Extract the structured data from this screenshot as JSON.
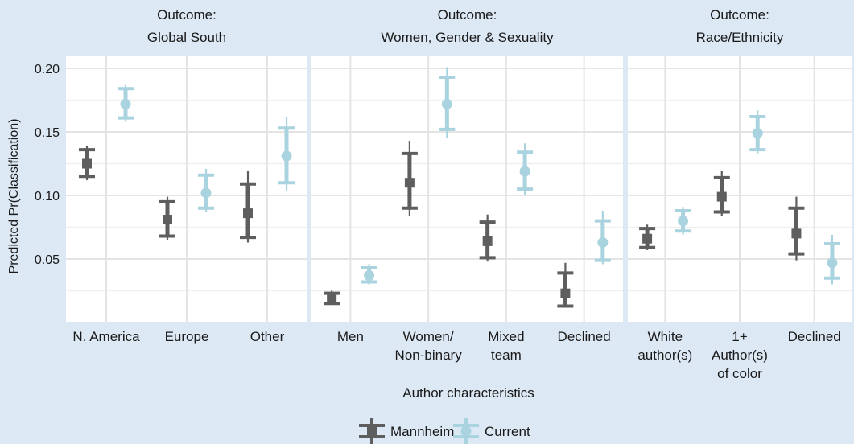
{
  "chart_data": {
    "type": "errorbar",
    "ylabel": "Predicted Pr(Classification)",
    "xlabel": "Author characteristics",
    "ylim": [
      0,
      0.2
    ],
    "yticks": [
      "0.05",
      "0.10",
      "0.15",
      "0.20"
    ],
    "ytick_values": [
      0.05,
      0.1,
      0.15,
      0.2
    ],
    "colors": {
      "Mannheim": "#5e5e5e",
      "Current": "#a9d3df"
    },
    "background": "#dce8f4",
    "legend": {
      "placement": "bottom",
      "entries": [
        "Mannheim",
        "Current"
      ]
    },
    "panels": [
      {
        "title": "Outcome:\nGlobal South",
        "categories": [
          "N. America",
          "Europe",
          "Other"
        ],
        "series": [
          {
            "name": "Mannheim",
            "values": [
              0.125,
              0.081,
              0.086
            ],
            "inner": [
              [
                0.115,
                0.136
              ],
              [
                0.068,
                0.095
              ],
              [
                0.067,
                0.109
              ]
            ],
            "outer": [
              [
                0.112,
                0.139
              ],
              [
                0.065,
                0.099
              ],
              [
                0.063,
                0.119
              ]
            ]
          },
          {
            "name": "Current",
            "values": [
              0.172,
              0.102,
              0.131
            ],
            "inner": [
              [
                0.161,
                0.184
              ],
              [
                0.09,
                0.116
              ],
              [
                0.11,
                0.153
              ]
            ],
            "outer": [
              [
                0.158,
                0.187
              ],
              [
                0.087,
                0.121
              ],
              [
                0.104,
                0.162
              ]
            ]
          }
        ]
      },
      {
        "title": "Outcome:\nWomen, Gender & Sexuality",
        "categories": [
          "Men",
          "Women/\nNon-binary",
          "Mixed\nteam",
          "Declined"
        ],
        "series": [
          {
            "name": "Mannheim",
            "values": [
              0.019,
              0.11,
              0.064,
              0.023
            ],
            "inner": [
              [
                0.015,
                0.023
              ],
              [
                0.09,
                0.133
              ],
              [
                0.051,
                0.079
              ],
              [
                0.013,
                0.039
              ]
            ],
            "outer": [
              [
                0.014,
                0.025
              ],
              [
                0.084,
                0.143
              ],
              [
                0.048,
                0.085
              ],
              [
                0.012,
                0.047
              ]
            ]
          },
          {
            "name": "Current",
            "values": [
              0.037,
              0.172,
              0.119,
              0.063
            ],
            "inner": [
              [
                0.032,
                0.043
              ],
              [
                0.152,
                0.193
              ],
              [
                0.105,
                0.134
              ],
              [
                0.049,
                0.08
              ]
            ],
            "outer": [
              [
                0.03,
                0.046
              ],
              [
                0.145,
                0.201
              ],
              [
                0.1,
                0.141
              ],
              [
                0.046,
                0.088
              ]
            ]
          }
        ]
      },
      {
        "title": "Outcome:\nRace/Ethnicity",
        "categories": [
          "White\nauthor(s)",
          "1+\nAuthor(s)\nof color",
          "Declined"
        ],
        "series": [
          {
            "name": "Mannheim",
            "values": [
              0.066,
              0.099,
              0.07
            ],
            "inner": [
              [
                0.059,
                0.074
              ],
              [
                0.087,
                0.114
              ],
              [
                0.054,
                0.09
              ]
            ],
            "outer": [
              [
                0.057,
                0.077
              ],
              [
                0.084,
                0.119
              ],
              [
                0.049,
                0.099
              ]
            ]
          },
          {
            "name": "Current",
            "values": [
              0.08,
              0.149,
              0.047
            ],
            "inner": [
              [
                0.072,
                0.088
              ],
              [
                0.136,
                0.162
              ],
              [
                0.035,
                0.062
              ]
            ],
            "outer": [
              [
                0.069,
                0.091
              ],
              [
                0.133,
                0.167
              ],
              [
                0.03,
                0.069
              ]
            ]
          }
        ]
      }
    ]
  }
}
